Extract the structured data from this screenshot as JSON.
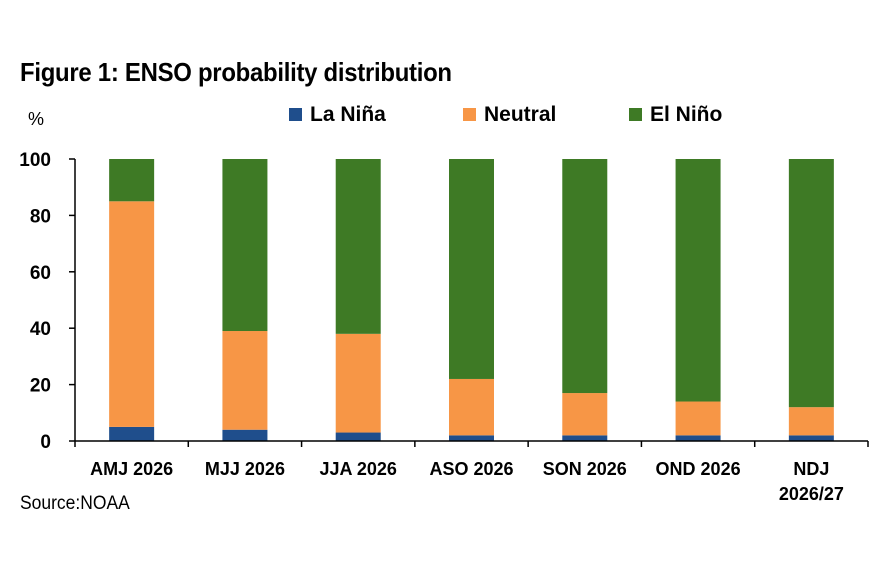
{
  "chart_data": {
    "type": "bar",
    "stacked": true,
    "title": "Figure 1: ENSO probability distribution",
    "ylabel": "%",
    "ylim": [
      0,
      100
    ],
    "yticks": [
      0,
      20,
      40,
      60,
      80,
      100
    ],
    "categories": [
      "AMJ 2026",
      "MJJ 2026",
      "JJA 2026",
      "ASO 2026",
      "SON 2026",
      "OND 2026",
      "NDJ 2026/27"
    ],
    "series": [
      {
        "name": "La Niña",
        "color": "#1f4e8c",
        "values": [
          5,
          4,
          3,
          2,
          2,
          2,
          2
        ]
      },
      {
        "name": "Neutral",
        "color": "#f79646",
        "values": [
          80,
          35,
          35,
          20,
          15,
          12,
          10
        ]
      },
      {
        "name": "El Niño",
        "color": "#3e7a25",
        "values": [
          15,
          61,
          62,
          78,
          83,
          86,
          88
        ]
      }
    ],
    "legend": "top",
    "grid": false,
    "source": "Source:NOAA"
  }
}
